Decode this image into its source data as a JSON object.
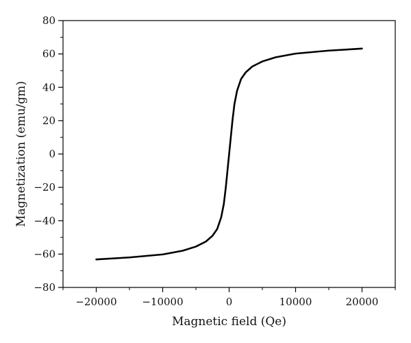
{
  "chart_data": {
    "type": "line",
    "title": "",
    "xlabel": "Magnetic field (Qe)",
    "ylabel": "Magnetization (emu/gm)",
    "xlim": [
      -25000,
      25000
    ],
    "ylim": [
      -80,
      80
    ],
    "xticks": [
      -20000,
      -10000,
      0,
      10000,
      20000
    ],
    "xtick_labels": [
      "−20000",
      "−10000",
      "0",
      "10000",
      "20000"
    ],
    "yticks": [
      -80,
      -60,
      -40,
      -20,
      0,
      20,
      40,
      60,
      80
    ],
    "ytick_labels": [
      "−80",
      "−60",
      "−40",
      "−20",
      "0",
      "20",
      "40",
      "60",
      "80"
    ],
    "grid": false,
    "legend": "none",
    "series": [
      {
        "color": "#000000",
        "x": [
          -20000,
          -15000,
          -10000,
          -7000,
          -5000,
          -3500,
          -2500,
          -1800,
          -1200,
          -800,
          -500,
          -300,
          -150,
          0,
          150,
          300,
          500,
          800,
          1200,
          1800,
          2500,
          3500,
          5000,
          7000,
          10000,
          15000,
          20000
        ],
        "y": [
          -63.2,
          -62.0,
          -60.2,
          -58.0,
          -55.5,
          -52.5,
          -49.0,
          -45.0,
          -38.0,
          -30.0,
          -20.0,
          -12.0,
          -6.0,
          0,
          6.0,
          12.0,
          20.0,
          30.0,
          38.0,
          45.0,
          49.0,
          52.5,
          55.5,
          58.0,
          60.2,
          62.0,
          63.2
        ]
      }
    ]
  }
}
